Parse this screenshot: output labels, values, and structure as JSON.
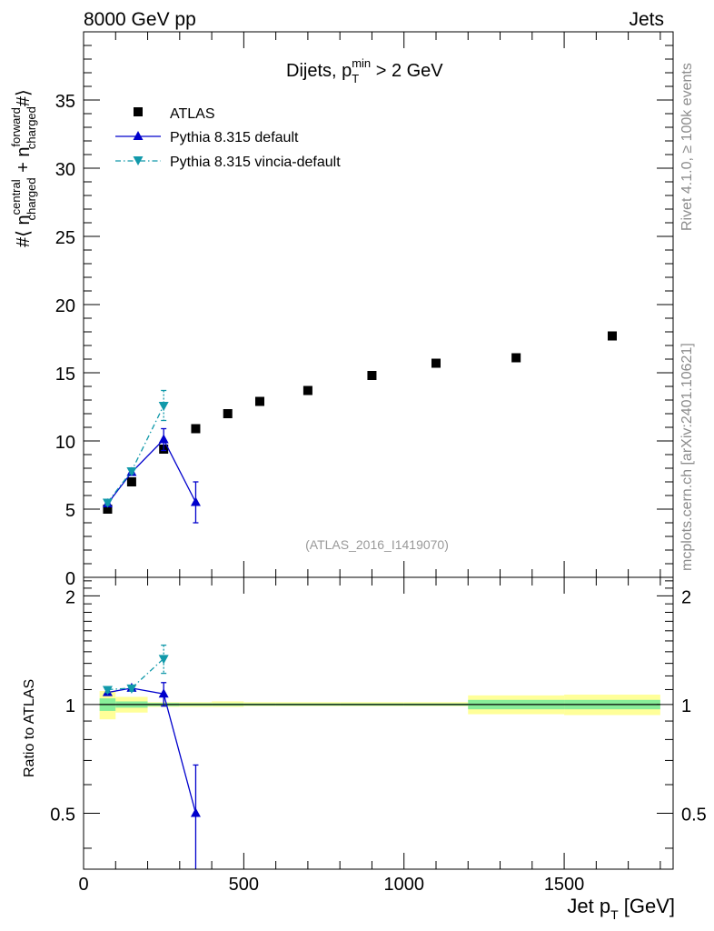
{
  "header": {
    "left": "8000 GeV pp",
    "right": "Jets"
  },
  "side_text": {
    "rivet": "Rivet 4.1.0, ≥ 100k events",
    "mcplots": "mcplots.cern.ch [arXiv:2401.10621]"
  },
  "watermark": "(ATLAS_2016_I1419070)",
  "chart_data": [
    {
      "type": "scatter",
      "title": "Dijets, p_T^min > 2 GeV",
      "title_parts": {
        "pre": "Dijets, p",
        "sub": "T",
        "sup": "min",
        "post": " > 2 GeV"
      },
      "ylabel": "#⟨ n^central_charged + n^forward_charged #⟩",
      "ylabel_parts": {
        "open": "#⟨ n",
        "sup1": "central",
        "sub1": "charged",
        "mid": " + n",
        "sup2": "forward",
        "sub2": "charged",
        "close": "#⟩"
      },
      "xlim": [
        0,
        1840
      ],
      "ylim": [
        0,
        40
      ],
      "yticks": [
        0,
        5,
        10,
        15,
        20,
        25,
        30,
        35
      ],
      "ytick_labels": [
        "0",
        "5",
        "10",
        "15",
        "20",
        "25",
        "30",
        "35"
      ],
      "legend_position": "top-left",
      "series": [
        {
          "name": "ATLAS",
          "marker": "square",
          "color": "#000000",
          "x": [
            75,
            150,
            250,
            350,
            450,
            550,
            700,
            900,
            1100,
            1350,
            1650
          ],
          "y": [
            5.0,
            7.0,
            9.4,
            10.9,
            12.0,
            12.9,
            13.7,
            14.8,
            15.7,
            16.1,
            17.7
          ]
        },
        {
          "name": "Pythia 8.315 default",
          "marker": "triangle-up",
          "color": "#0000cc",
          "line": "solid",
          "x": [
            75,
            150,
            250,
            350
          ],
          "y": [
            5.4,
            7.7,
            10.1,
            5.5
          ],
          "yerr": [
            0.2,
            0.2,
            0.8,
            1.5
          ]
        },
        {
          "name": "Pythia 8.315 vincia-default",
          "marker": "triangle-down",
          "color": "#1199aa",
          "line": "dashdot",
          "x": [
            75,
            150,
            250
          ],
          "y": [
            5.5,
            7.8,
            12.6
          ],
          "yerr": [
            0.2,
            0.2,
            1.1
          ]
        }
      ]
    },
    {
      "type": "scatter",
      "title": "",
      "ylabel": "Ratio to ATLAS",
      "xlabel": "Jet p_T [GeV]",
      "xlabel_parts": {
        "pre": "Jet p",
        "sub": "T",
        "post": " [GeV]"
      },
      "xlim": [
        0,
        1840
      ],
      "ylim": [
        0.35,
        2.25
      ],
      "xticks": [
        0,
        500,
        1000,
        1500
      ],
      "xtick_labels": [
        "0",
        "500",
        "1000",
        "1500"
      ],
      "yticks": [
        0.5,
        1,
        2
      ],
      "ytick_labels": [
        "0.5",
        "1",
        "2"
      ],
      "reference_line": 1,
      "bands": [
        {
          "x_low": 50,
          "x_high": 100,
          "green": [
            0.96,
            1.04
          ],
          "yellow": [
            0.91,
            1.09
          ]
        },
        {
          "x_low": 100,
          "x_high": 200,
          "green": [
            0.98,
            1.02
          ],
          "yellow": [
            0.95,
            1.05
          ]
        },
        {
          "x_low": 200,
          "x_high": 300,
          "green": [
            0.99,
            1.01
          ],
          "yellow": [
            0.985,
            1.015
          ]
        },
        {
          "x_low": 300,
          "x_high": 400,
          "green": [
            0.992,
            1.008
          ],
          "yellow": [
            0.985,
            1.015
          ]
        },
        {
          "x_low": 400,
          "x_high": 500,
          "green": [
            0.992,
            1.008
          ],
          "yellow": [
            0.985,
            1.02
          ]
        },
        {
          "x_low": 500,
          "x_high": 600,
          "green": [
            0.993,
            1.007
          ],
          "yellow": [
            0.99,
            1.015
          ]
        },
        {
          "x_low": 600,
          "x_high": 800,
          "green": [
            0.993,
            1.007
          ],
          "yellow": [
            0.99,
            1.015
          ]
        },
        {
          "x_low": 800,
          "x_high": 1000,
          "green": [
            0.993,
            1.007
          ],
          "yellow": [
            0.99,
            1.015
          ]
        },
        {
          "x_low": 1000,
          "x_high": 1200,
          "green": [
            0.993,
            1.007
          ],
          "yellow": [
            0.99,
            1.015
          ]
        },
        {
          "x_low": 1200,
          "x_high": 1500,
          "green": [
            0.97,
            1.03
          ],
          "yellow": [
            0.94,
            1.06
          ]
        },
        {
          "x_low": 1500,
          "x_high": 1800,
          "green": [
            0.97,
            1.03
          ],
          "yellow": [
            0.935,
            1.065
          ]
        }
      ],
      "series": [
        {
          "name": "Pythia 8.315 default",
          "marker": "triangle-up",
          "color": "#0000cc",
          "line": "solid",
          "x": [
            75,
            150,
            250,
            350
          ],
          "y": [
            1.08,
            1.11,
            1.07,
            0.5
          ],
          "yerr": [
            0.02,
            0.02,
            0.08,
            0.18
          ]
        },
        {
          "name": "Pythia 8.315 vincia-default",
          "marker": "triangle-down",
          "color": "#1199aa",
          "line": "dashdot",
          "x": [
            75,
            150,
            250
          ],
          "y": [
            1.1,
            1.11,
            1.34
          ],
          "yerr": [
            0.02,
            0.02,
            0.12
          ]
        }
      ]
    }
  ]
}
